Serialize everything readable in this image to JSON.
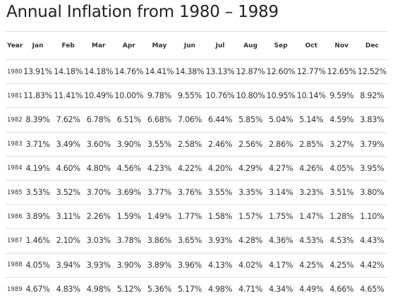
{
  "title": "Annual Inflation from 1980 – 1989",
  "table": {
    "headers": [
      "Year",
      "Jan",
      "Feb",
      "Mar",
      "Apr",
      "May",
      "Jun",
      "Jul",
      "Aug",
      "Sep",
      "Oct",
      "Nov",
      "Dec"
    ],
    "rows": [
      [
        "1980",
        "13.91%",
        "14.18%",
        "14.18%",
        "14.76%",
        "14.41%",
        "14.38%",
        "13.13%",
        "12.87%",
        "12.60%",
        "12.77%",
        "12.65%",
        "12.52%"
      ],
      [
        "1981",
        "11.83%",
        "11.41%",
        "10.49%",
        "10.00%",
        "9.78%",
        "9.55%",
        "10.76%",
        "10.80%",
        "10.95%",
        "10.14%",
        "9.59%",
        "8.92%"
      ],
      [
        "1982",
        "8.39%",
        "7.62%",
        "6.78%",
        "6.51%",
        "6.68%",
        "7.06%",
        "6.44%",
        "5.85%",
        "5.04%",
        "5.14%",
        "4.59%",
        "3.83%"
      ],
      [
        "1983",
        "3.71%",
        "3.49%",
        "3.60%",
        "3.90%",
        "3.55%",
        "2.58%",
        "2.46%",
        "2.56%",
        "2.86%",
        "2.85%",
        "3.27%",
        "3.79%"
      ],
      [
        "1984",
        "4.19%",
        "4.60%",
        "4.80%",
        "4.56%",
        "4.23%",
        "4.22%",
        "4.20%",
        "4.29%",
        "4.27%",
        "4.26%",
        "4.05%",
        "3.95%"
      ],
      [
        "1985",
        "3.53%",
        "3.52%",
        "3.70%",
        "3.69%",
        "3.77%",
        "3.76%",
        "3.55%",
        "3.35%",
        "3.14%",
        "3.23%",
        "3.51%",
        "3.80%"
      ],
      [
        "1986",
        "3.89%",
        "3.11%",
        "2.26%",
        "1.59%",
        "1.49%",
        "1.77%",
        "1.58%",
        "1.57%",
        "1.75%",
        "1.47%",
        "1.28%",
        "1.10%"
      ],
      [
        "1987",
        "1.46%",
        "2.10%",
        "3.03%",
        "3.78%",
        "3.86%",
        "3.65%",
        "3.93%",
        "4.28%",
        "4.36%",
        "4.53%",
        "4.53%",
        "4.43%"
      ],
      [
        "1988",
        "4.05%",
        "3.94%",
        "3.93%",
        "3.90%",
        "3.89%",
        "3.96%",
        "4.13%",
        "4.02%",
        "4.17%",
        "4.25%",
        "4.25%",
        "4.42%"
      ],
      [
        "1989",
        "4.67%",
        "4.83%",
        "4.98%",
        "5.12%",
        "5.36%",
        "5.17%",
        "4.98%",
        "4.71%",
        "4.34%",
        "4.49%",
        "4.66%",
        "4.65%"
      ]
    ]
  },
  "colors": {
    "text": "#333333",
    "title": "#222222",
    "row_border": "#dddddd",
    "background": "#ffffff"
  }
}
